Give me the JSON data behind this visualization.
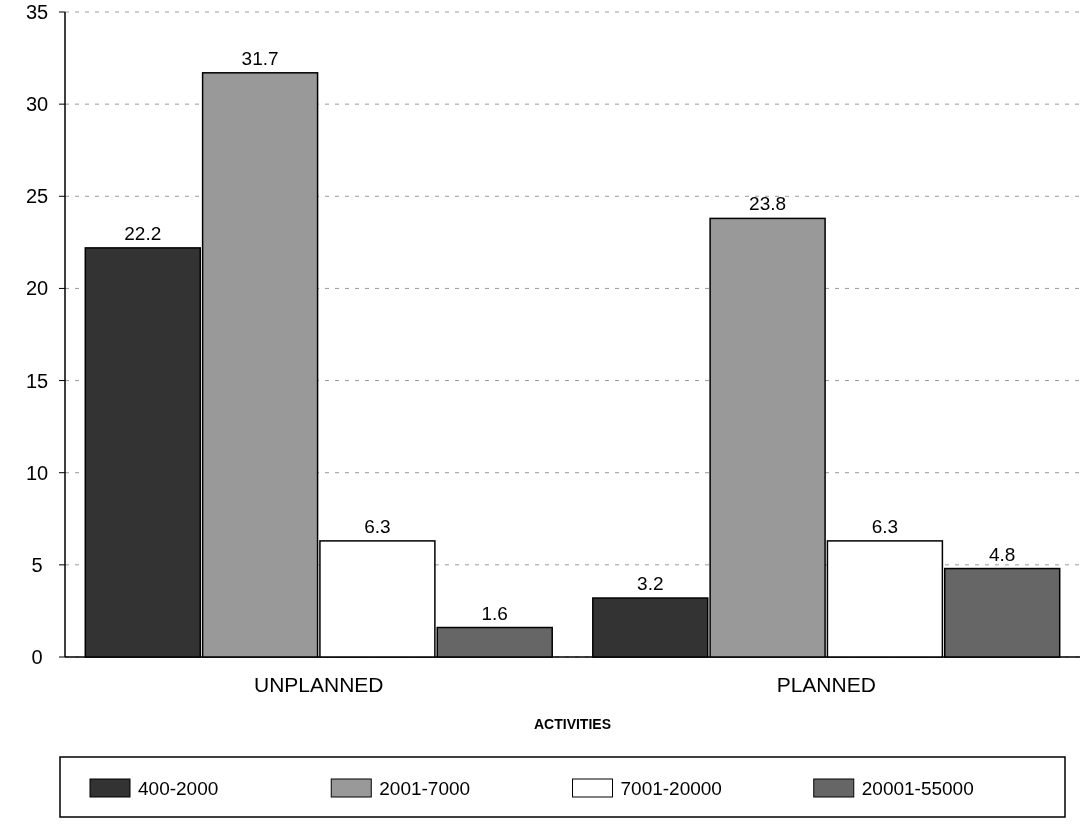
{
  "chart_data": {
    "type": "bar",
    "xlabel": "ACTIVITIES",
    "categories": [
      "UNPLANNED",
      "PLANNED"
    ],
    "series": [
      {
        "name": "400-2000",
        "color": "#333333",
        "values": [
          22.2,
          3.2
        ]
      },
      {
        "name": "2001-7000",
        "color": "#999999",
        "values": [
          31.7,
          23.8
        ]
      },
      {
        "name": "7001-20000",
        "color": "#ffffff",
        "values": [
          6.3,
          6.3
        ]
      },
      {
        "name": "20001-55000",
        "color": "#666666",
        "values": [
          1.6,
          4.8
        ]
      }
    ],
    "ylim": [
      0,
      35
    ],
    "yticks": [
      0,
      5,
      10,
      15,
      20,
      25,
      30,
      35
    ],
    "grid": "y",
    "legend": "bottom",
    "data_labels": true
  }
}
